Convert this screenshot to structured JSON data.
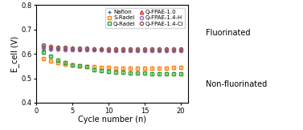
{
  "chart_data": {
    "type": "scatter",
    "x_label": "Cycle number (n)",
    "y_label": "E_cell (V)",
    "xlim": [
      0,
      21
    ],
    "xticks": [
      0,
      5,
      10,
      15,
      20
    ],
    "ylim": [
      0.4,
      0.8
    ],
    "yticks": [
      0.4,
      0.5,
      0.6,
      0.7,
      0.8
    ],
    "legend": "upper right",
    "annotations": [
      "Fluorinated",
      "Non-fluorinated"
    ],
    "series": [
      {
        "name": "Nafion",
        "marker": "plus",
        "yerr": 0.008,
        "x": [
          1,
          2,
          3,
          4,
          5,
          6,
          7,
          8,
          9,
          10,
          11,
          12,
          13,
          14,
          15,
          16,
          17,
          18,
          19,
          20
        ],
        "values": [
          0.617,
          0.617,
          0.617,
          0.618,
          0.618,
          0.618,
          0.618,
          0.617,
          0.617,
          0.617,
          0.617,
          0.617,
          0.617,
          0.617,
          0.617,
          0.617,
          0.617,
          0.617,
          0.617,
          0.617
        ]
      },
      {
        "name": "S-Radel",
        "marker": "square",
        "yerr": 0.008,
        "x": [
          1,
          2,
          3,
          4,
          5,
          6,
          7,
          8,
          9,
          10,
          11,
          12,
          13,
          14,
          15,
          16,
          17,
          18,
          19,
          20
        ],
        "values": [
          0.58,
          0.572,
          0.564,
          0.558,
          0.554,
          0.552,
          0.549,
          0.547,
          0.545,
          0.544,
          0.543,
          0.543,
          0.543,
          0.542,
          0.542,
          0.542,
          0.542,
          0.543,
          0.544,
          0.546
        ]
      },
      {
        "name": "Q-Radel",
        "marker": "square",
        "yerr": 0.008,
        "x": [
          1,
          2,
          3,
          4,
          5,
          6,
          7,
          8,
          9,
          10,
          11,
          12,
          13,
          14,
          15,
          16,
          17,
          18,
          19,
          20
        ],
        "values": [
          0.606,
          0.591,
          0.575,
          0.565,
          0.556,
          0.551,
          0.548,
          0.536,
          0.53,
          0.528,
          0.526,
          0.524,
          0.523,
          0.522,
          0.521,
          0.52,
          0.519,
          0.519,
          0.519,
          0.519
        ]
      },
      {
        "name": "Q-FPAE-1.0",
        "marker": "triangle",
        "yerr": 0.008,
        "x": [
          1,
          2,
          3,
          4,
          5,
          6,
          7,
          8,
          9,
          10,
          11,
          12,
          13,
          14,
          15,
          16,
          17,
          18,
          19,
          20
        ],
        "values": [
          0.632,
          0.628,
          0.625,
          0.623,
          0.622,
          0.621,
          0.62,
          0.619,
          0.619,
          0.618,
          0.618,
          0.617,
          0.617,
          0.617,
          0.617,
          0.617,
          0.616,
          0.616,
          0.616,
          0.616
        ]
      },
      {
        "name": "Q-FPAE-1.4-H",
        "marker": "circle",
        "yerr": 0.008,
        "x": [
          1,
          2,
          3,
          4,
          5,
          6,
          7,
          8,
          9,
          10,
          11,
          12,
          13,
          14,
          15,
          16,
          17,
          18,
          19,
          20
        ],
        "values": [
          0.627,
          0.622,
          0.62,
          0.618,
          0.617,
          0.617,
          0.616,
          0.616,
          0.616,
          0.615,
          0.615,
          0.615,
          0.615,
          0.614,
          0.614,
          0.614,
          0.614,
          0.613,
          0.613,
          0.613
        ]
      },
      {
        "name": "Q-FPAE-1.4-Cl",
        "marker": "circle",
        "yerr": 0.008,
        "x": [
          1,
          2,
          3,
          4,
          5,
          6,
          7,
          8,
          9,
          10,
          11,
          12,
          13,
          14,
          15,
          16,
          17,
          18,
          19,
          20
        ],
        "values": [
          0.636,
          0.631,
          0.628,
          0.626,
          0.625,
          0.624,
          0.623,
          0.622,
          0.622,
          0.621,
          0.621,
          0.621,
          0.62,
          0.62,
          0.62,
          0.619,
          0.619,
          0.619,
          0.619,
          0.619
        ]
      }
    ]
  }
}
